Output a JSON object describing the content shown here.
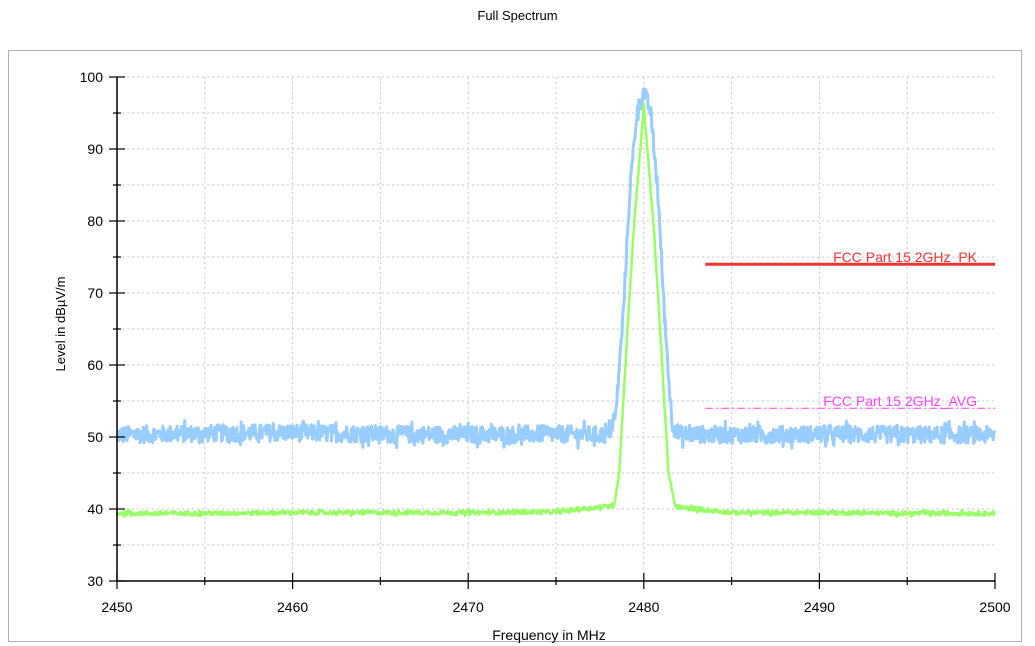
{
  "chart_data": {
    "type": "line",
    "title": "Full Spectrum",
    "xlabel": "Frequency in MHz",
    "ylabel": "Level in dBµV/m",
    "xlim": [
      2450,
      2500
    ],
    "ylim": [
      30,
      100
    ],
    "xticks": [
      2450,
      2460,
      2470,
      2480,
      2490,
      2500
    ],
    "yticks": [
      30,
      40,
      50,
      60,
      70,
      80,
      90,
      100
    ],
    "grid": true,
    "series": [
      {
        "color": "#99ccff",
        "noise_amplitude": 1.2,
        "x": [
          2450,
          2455,
          2460,
          2465,
          2470,
          2475,
          2478,
          2478.4,
          2478.8,
          2479.2,
          2479.6,
          2480,
          2480.4,
          2480.8,
          2481.2,
          2481.6,
          2482,
          2485,
          2490,
          2495,
          2500
        ],
        "y": [
          50.3,
          50.5,
          50.6,
          50.4,
          50.3,
          50.4,
          50.3,
          53,
          66,
          84,
          95,
          98,
          95,
          84,
          66,
          52,
          50.4,
          50.3,
          50.4,
          50.3,
          50.3
        ]
      },
      {
        "color": "#99ff66",
        "noise_amplitude": 0.3,
        "x": [
          2450,
          2455,
          2460,
          2465,
          2470,
          2475,
          2478.3,
          2478.6,
          2479,
          2479.4,
          2479.8,
          2480,
          2480.2,
          2480.6,
          2481,
          2481.4,
          2481.8,
          2485,
          2490,
          2495,
          2500
        ],
        "y": [
          39.4,
          39.4,
          39.5,
          39.5,
          39.5,
          39.6,
          40.5,
          45,
          62,
          78,
          90,
          96,
          90,
          78,
          62,
          45,
          40.3,
          39.5,
          39.5,
          39.4,
          39.4
        ]
      }
    ],
    "limit_lines": [
      {
        "label": "FCC Part 15 2GHz_PK",
        "value": 74,
        "x_start": 2483.5,
        "x_end": 2500,
        "color": "#ee3333",
        "style": "solid"
      },
      {
        "label": "FCC Part 15 2GHz_AVG",
        "value": 54,
        "x_start": 2483.5,
        "x_end": 2500,
        "color": "#ff44ff",
        "style": "dashdot"
      }
    ]
  }
}
